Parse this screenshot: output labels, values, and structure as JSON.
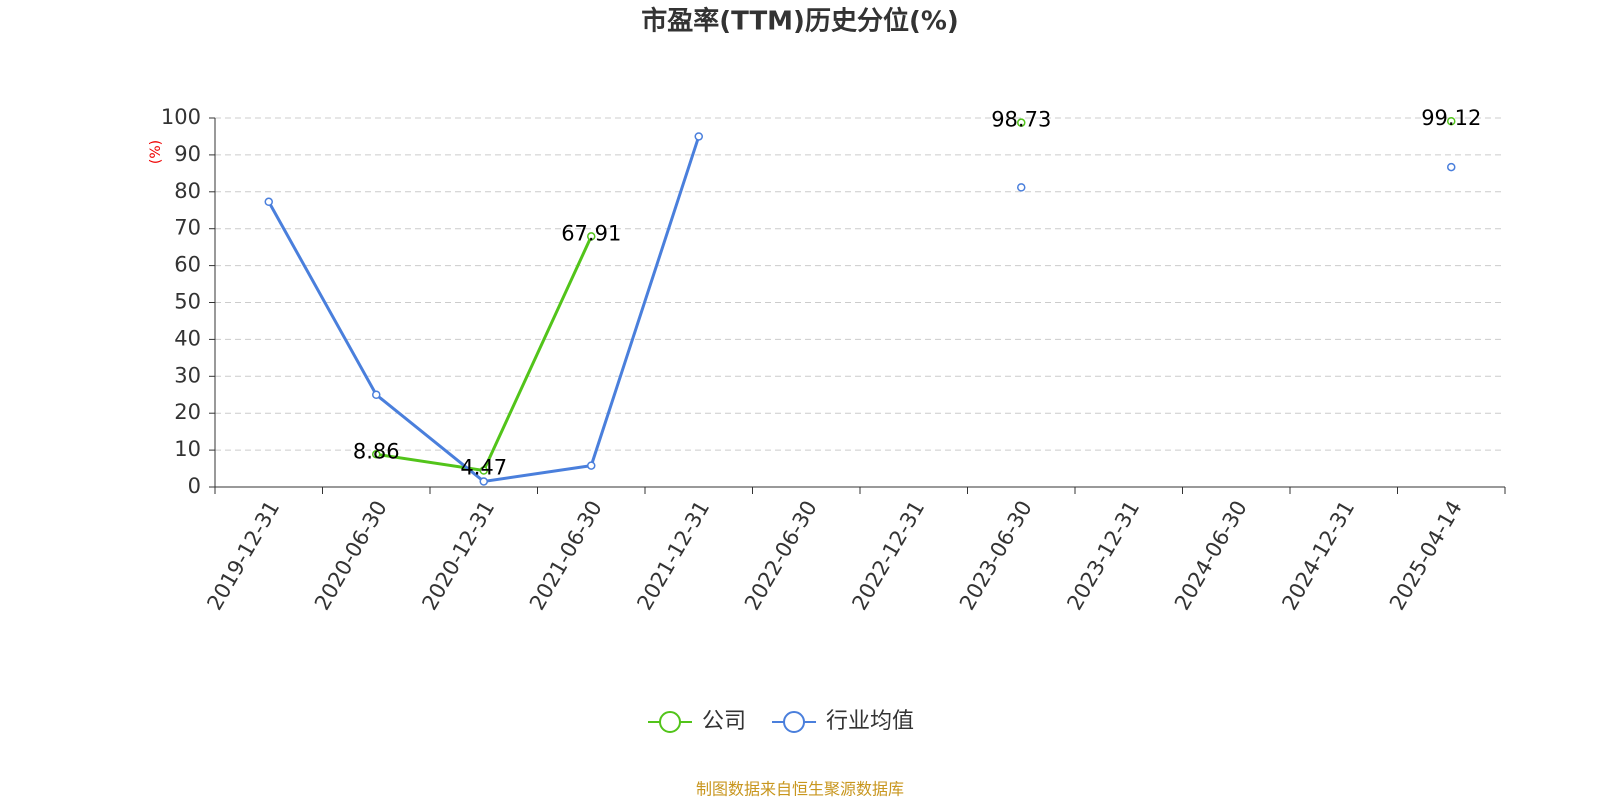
{
  "chart_data": {
    "type": "line",
    "title": "市盈率(TTM)历史分位(%)",
    "y_label": "(%)",
    "categories": [
      "2019-12-31",
      "2020-06-30",
      "2020-12-31",
      "2021-06-30",
      "2021-12-31",
      "2022-06-30",
      "2022-12-31",
      "2023-06-30",
      "2023-12-31",
      "2024-06-30",
      "2024-12-31",
      "2025-04-14"
    ],
    "series": [
      {
        "name": "公司",
        "color": "#52c41a",
        "show_labels": true,
        "values": [
          null,
          8.86,
          4.47,
          67.91,
          null,
          null,
          null,
          98.73,
          null,
          null,
          null,
          99.12
        ]
      },
      {
        "name": "行业均值",
        "color": "#4a7fdc",
        "show_labels": false,
        "values": [
          77.3,
          25,
          1.5,
          5.8,
          95,
          null,
          null,
          81.2,
          null,
          null,
          null,
          86.7
        ]
      }
    ],
    "ylim": [
      0,
      100
    ],
    "yticks": [
      0,
      10,
      20,
      30,
      40,
      50,
      60,
      70,
      80,
      90,
      100
    ],
    "grid": true,
    "legend": "bottom",
    "source": "制图数据来自恒生聚源数据库"
  }
}
